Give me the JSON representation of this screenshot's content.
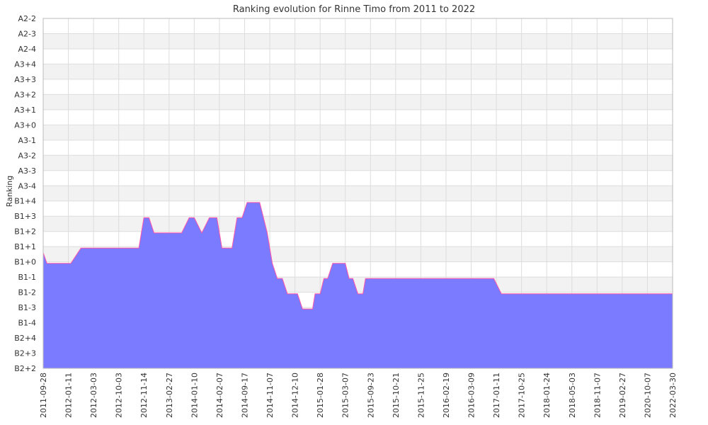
{
  "chart_data": {
    "type": "area",
    "title": "Ranking evolution for Rinne Timo from 2011 to 2022",
    "ylabel": "Ranking",
    "xlabel": "",
    "y_categories_top_to_bottom": [
      "A2-2",
      "A2-3",
      "A2-4",
      "A3+4",
      "A3+3",
      "A3+2",
      "A3+1",
      "A3+0",
      "A3-1",
      "A3-2",
      "A3-3",
      "A3-4",
      "B1+4",
      "B1+3",
      "B1+2",
      "B1+1",
      "B1+0",
      "B1-1",
      "B1-2",
      "B1-3",
      "B1-4",
      "B2+4",
      "B2+3",
      "B2+2"
    ],
    "x_tick_labels": [
      "2011-09-28",
      "2012-01-11",
      "2012-03-03",
      "2012-10-03",
      "2012-11-14",
      "2013-02-27",
      "2014-01-10",
      "2014-02-07",
      "2014-09-17",
      "2014-11-07",
      "2014-12-10",
      "2015-01-28",
      "2015-03-07",
      "2015-09-23",
      "2015-10-21",
      "2015-11-25",
      "2016-02-19",
      "2016-03-09",
      "2017-01-11",
      "2017-10-25",
      "2018-01-24",
      "2018-05-03",
      "2018-11-07",
      "2019-02-27",
      "2020-10-07",
      "2022-03-30"
    ],
    "series": [
      {
        "x": [
          0,
          0.15,
          0.6,
          1.1,
          1.5,
          2.1,
          2.3,
          3.3,
          3.8,
          4.0,
          4.1,
          4.2,
          4.4,
          4.9,
          5.2,
          5.5,
          5.8,
          6.0,
          6.3,
          6.6,
          6.9,
          7.1,
          7.3,
          7.5,
          7.7,
          7.9,
          8.1,
          8.3,
          8.4,
          8.6,
          8.9,
          9.1,
          9.3,
          9.5,
          9.7,
          9.9,
          10.1,
          10.3,
          10.5,
          10.7,
          10.8,
          11.0,
          11.15,
          11.3,
          11.5,
          11.8,
          12.0,
          12.15,
          12.3,
          12.5,
          12.7,
          12.8,
          13.0,
          13.2,
          13.5,
          13.8,
          14.0,
          14.3,
          14.6,
          14.8,
          15.0,
          15.1,
          15.4,
          15.6,
          15.9,
          16.1,
          16.4,
          16.6,
          16.8,
          17.0,
          17.2,
          17.4,
          17.6,
          17.9,
          18.2,
          18.4,
          18.6,
          19.0,
          19.1,
          19.3,
          19.6,
          19.9,
          20.2,
          20.4,
          20.6,
          20.8,
          21.1,
          21.3,
          21.5,
          21.8,
          22.0,
          22.2,
          22.4,
          22.5,
          22.7,
          22.9,
          23.0,
          23.2,
          23.5,
          23.8,
          24.0,
          24.3,
          24.5,
          24.8,
          25.0
        ],
        "y": [
          7.6,
          6.9,
          6.9,
          6.9,
          7.9,
          7.9,
          7.9,
          7.9,
          7.9,
          9.9,
          9.9,
          9.9,
          8.9,
          8.9,
          8.9,
          8.9,
          9.9,
          9.9,
          8.9,
          9.9,
          9.9,
          7.9,
          7.9,
          7.9,
          9.9,
          9.9,
          10.9,
          10.9,
          10.9,
          10.9,
          8.9,
          6.9,
          5.9,
          5.9,
          4.9,
          4.9,
          4.9,
          3.9,
          3.9,
          3.9,
          4.9,
          4.9,
          5.9,
          5.9,
          6.9,
          6.9,
          6.9,
          5.9,
          5.9,
          4.9,
          4.9,
          5.9,
          5.9,
          5.9,
          5.9,
          5.9,
          5.9,
          5.9,
          5.9,
          5.9,
          5.9,
          5.9,
          5.9,
          5.9,
          5.9,
          5.9,
          5.9,
          5.9,
          5.9,
          5.9,
          5.9,
          5.9,
          5.9,
          5.9,
          4.9,
          4.9,
          4.9,
          4.9,
          4.9,
          4.9,
          4.9,
          4.9,
          4.9,
          4.9,
          4.9,
          4.9,
          4.9,
          4.9,
          4.9,
          4.9,
          4.9,
          4.9,
          4.9,
          4.9,
          4.9,
          4.9,
          4.9,
          4.9,
          4.9,
          4.9,
          4.9,
          4.9,
          4.9,
          4.9,
          4.9
        ]
      }
    ],
    "ylim": [
      0,
      23
    ],
    "grid": true,
    "colors": {
      "fill": "#7b7bff",
      "line": "#ff55aa",
      "band": "#f2f2f2",
      "grid": "#dddddd",
      "axis": "#bbbbbb"
    }
  }
}
